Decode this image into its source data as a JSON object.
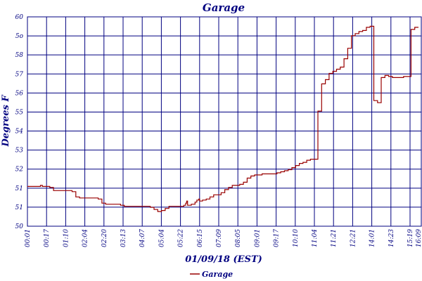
{
  "chart_data": {
    "type": "line",
    "title": "Garage",
    "xlabel": "01/09/18 (EST)",
    "ylabel": "Degrees F",
    "y_tick_labels": [
      "50",
      "51",
      "51",
      "52",
      "53",
      "54",
      "55",
      "56",
      "57",
      "58",
      "5o",
      "60"
    ],
    "ylim": [
      50,
      60
    ],
    "x_tick_labels": [
      "00:01",
      "00:17",
      "01:10",
      "02:04",
      "02:20",
      "03:13",
      "04:07",
      "05:04",
      "05:22",
      "06:15",
      "07:09",
      "08:05",
      "09:01",
      "09:17",
      "10:10",
      "11:04",
      "11:21",
      "12:21",
      "14:01",
      "14:23",
      "15:19",
      "16:09"
    ],
    "grid": true,
    "legend_position": "bottom-center",
    "colors": {
      "series": "#990000",
      "grid": "#000080",
      "text": "#000080"
    },
    "series": [
      {
        "name": "Garage",
        "x": [
          0.0,
          0.04,
          0.06,
          0.07,
          0.08,
          0.1,
          0.12,
          0.14,
          0.15,
          0.18,
          0.2,
          0.22,
          0.24,
          0.26,
          0.28,
          0.3,
          0.32,
          0.34,
          0.36,
          0.38,
          0.4,
          0.42,
          0.44,
          0.46,
          0.48,
          0.5,
          0.52,
          0.54,
          0.56,
          0.58,
          0.6,
          0.62,
          0.64,
          0.66,
          0.68,
          0.7,
          0.72,
          0.74,
          0.76,
          0.78,
          0.8,
          0.82,
          0.84,
          0.85,
          0.855,
          0.86,
          0.88,
          0.9,
          0.91,
          0.92,
          0.925,
          0.93,
          0.94,
          0.96,
          0.98,
          1.0,
          1.02,
          1.04,
          1.06,
          1.08,
          1.1,
          1.12,
          1.14,
          1.16,
          1.18,
          1.2,
          1.22,
          1.24,
          1.26,
          1.28,
          1.3,
          1.32,
          1.34,
          1.36,
          1.38,
          1.4,
          1.42,
          1.44,
          1.46,
          1.48,
          1.5,
          1.52,
          1.54,
          1.56,
          1.58,
          1.6,
          1.62,
          1.64,
          1.66,
          1.68,
          1.7,
          1.72,
          1.74,
          1.76,
          1.78,
          1.8,
          1.82,
          1.84,
          1.86,
          1.88,
          1.9,
          1.92,
          1.94,
          1.96,
          1.98,
          2.0,
          2.02,
          2.04,
          2.06,
          2.08,
          2.1
        ],
        "values": [
          51.9,
          51.9,
          51.9,
          51.95,
          51.9,
          51.9,
          51.85,
          51.7,
          51.7,
          51.7,
          51.7,
          51.7,
          51.65,
          51.4,
          51.35,
          51.35,
          51.35,
          51.35,
          51.35,
          51.3,
          51.1,
          51.05,
          51.05,
          51.05,
          51.05,
          51.0,
          50.95,
          50.95,
          50.95,
          50.95,
          50.95,
          50.95,
          50.95,
          50.9,
          50.8,
          50.7,
          50.75,
          50.85,
          50.95,
          50.95,
          50.95,
          50.95,
          51.0,
          51.1,
          51.2,
          51.0,
          51.05,
          51.15,
          51.25,
          51.3,
          51.2,
          51.2,
          51.25,
          51.3,
          51.4,
          51.5,
          51.5,
          51.6,
          51.75,
          51.85,
          51.95,
          51.95,
          52.0,
          52.1,
          52.3,
          52.4,
          52.45,
          52.45,
          52.5,
          52.5,
          52.5,
          52.5,
          52.55,
          52.6,
          52.65,
          52.7,
          52.8,
          52.9,
          53.0,
          53.05,
          53.15,
          53.2,
          53.2,
          55.5,
          56.8,
          57.0,
          57.3,
          57.4,
          57.5,
          57.6,
          58.0,
          58.5,
          59.1,
          59.2,
          59.3,
          59.35,
          59.5,
          59.55,
          56.0,
          55.9,
          57.1,
          57.2,
          57.15,
          57.1,
          57.1,
          57.1,
          57.15,
          57.15,
          59.4,
          59.5,
          59.5
        ]
      }
    ]
  }
}
